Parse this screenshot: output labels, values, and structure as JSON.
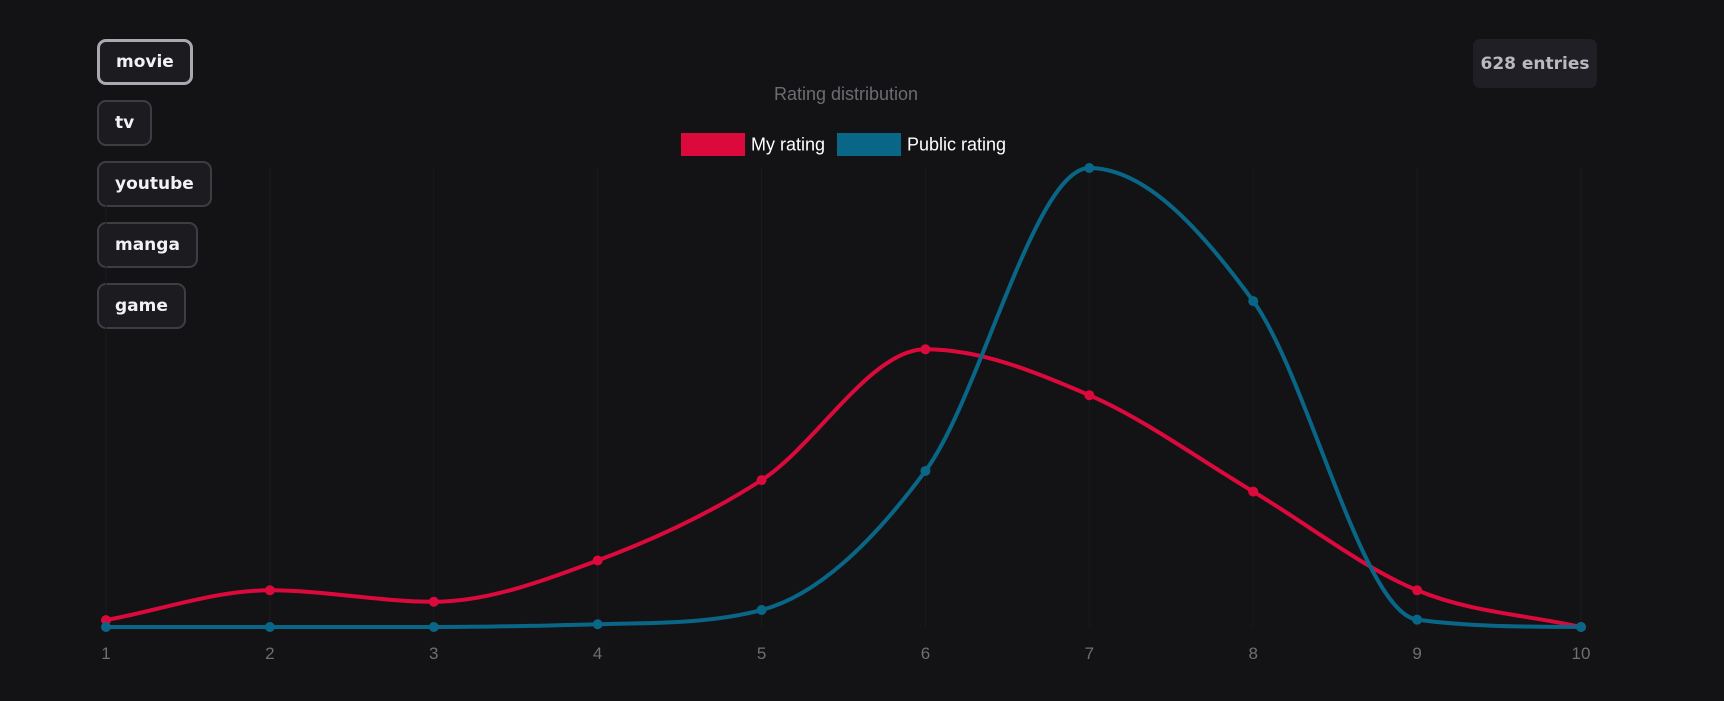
{
  "filters": [
    {
      "label": "movie",
      "active": true
    },
    {
      "label": "tv",
      "active": false
    },
    {
      "label": "youtube",
      "active": false
    },
    {
      "label": "manga",
      "active": false
    },
    {
      "label": "game",
      "active": false
    }
  ],
  "entries_label": "628 entries",
  "chart_data": {
    "type": "line",
    "title": "Rating distribution",
    "xlabel": "",
    "ylabel": "",
    "x": [
      1,
      2,
      3,
      4,
      5,
      6,
      7,
      8,
      9,
      10
    ],
    "xlim": [
      1,
      10
    ],
    "ylim": [
      0,
      100
    ],
    "grid": true,
    "legend_position": "top-center",
    "series": [
      {
        "name": "My rating",
        "color": "#dc0a3c",
        "values": [
          1.5,
          8,
          5.5,
          14.5,
          32,
          60.5,
          50.5,
          29.5,
          8,
          0
        ]
      },
      {
        "name": "Public rating",
        "color": "#0a6686",
        "values": [
          0,
          0,
          0,
          0.6,
          3.7,
          34,
          100,
          71,
          1.6,
          0
        ]
      }
    ]
  }
}
